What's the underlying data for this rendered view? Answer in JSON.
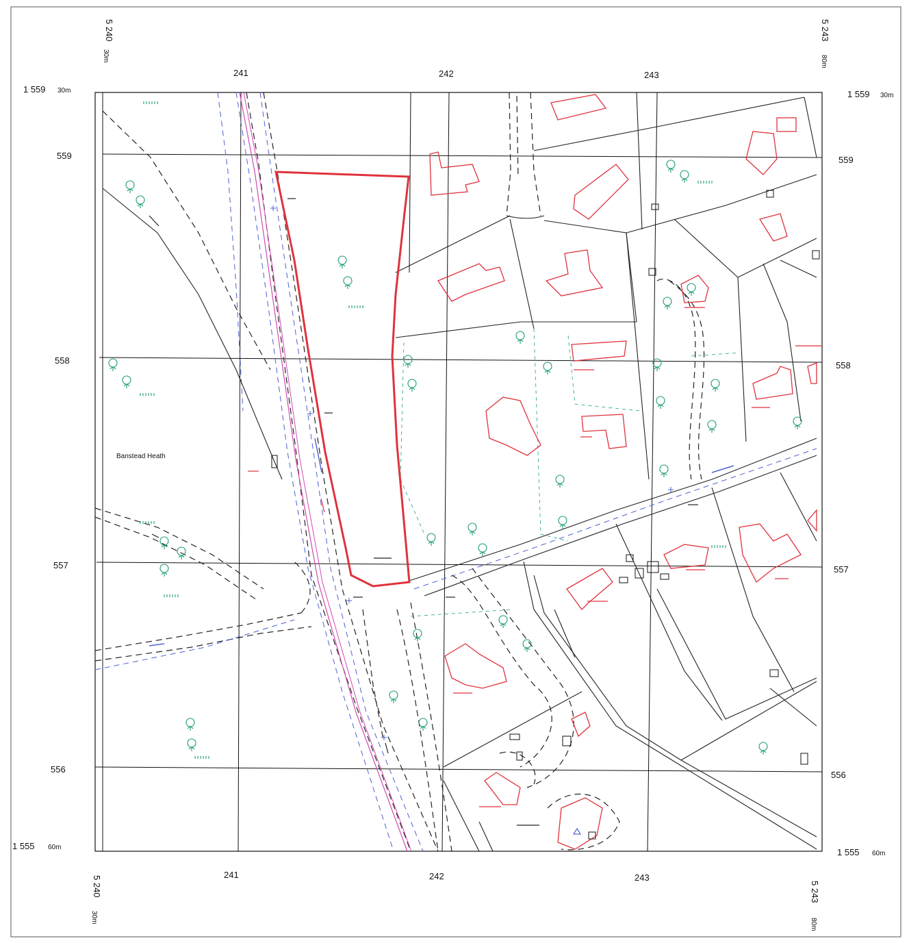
{
  "map": {
    "top_left_easting": "5 240",
    "top_left_easting_unit": "30m",
    "top_right_easting": "5 243",
    "top_right_easting_unit": "80m",
    "bottom_left_easting": "5 240",
    "bottom_left_easting_unit": "30m",
    "bottom_right_easting": "5 243",
    "bottom_right_easting_unit": "80m",
    "northing_top_left": "1 559",
    "northing_top_left_unit": "30m",
    "northing_top_right": "1 559",
    "northing_top_right_unit": "30m",
    "northing_bottom_left": "1 555",
    "northing_bottom_left_unit": "60m",
    "northing_bottom_right": "1 555",
    "northing_bottom_right_unit": "60m",
    "easting_ticks": [
      "241",
      "242",
      "243"
    ],
    "northing_ticks": [
      "559",
      "558",
      "557",
      "556"
    ],
    "place_labels": {
      "banstead_heath": "Banstead Heath"
    },
    "colors": {
      "site_boundary": "#e0323c",
      "buildings": "#e0323c",
      "vegetation": "#1a9a76",
      "roads_blue": "#4b5fd6"
    },
    "icons": [
      "tree-icon",
      "survey-cross-icon",
      "triangulation-pillar-icon"
    ]
  }
}
